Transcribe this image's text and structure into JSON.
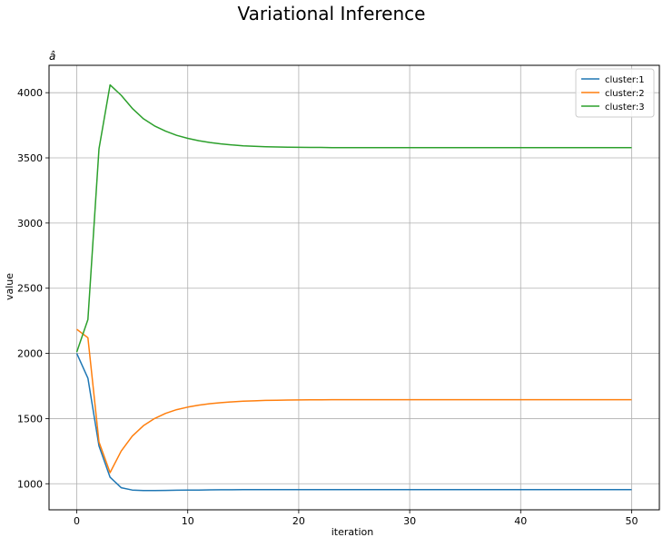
{
  "figure": {
    "suptitle": "Variational Inference"
  },
  "chart_data": {
    "type": "line",
    "title": "â",
    "xlabel": "iteration",
    "ylabel": "value",
    "xlim": [
      -2.5,
      52.5
    ],
    "ylim": [
      800,
      4210
    ],
    "xticks": [
      0,
      10,
      20,
      30,
      40,
      50
    ],
    "yticks": [
      1000,
      1500,
      2000,
      2500,
      3000,
      3500,
      4000
    ],
    "grid": true,
    "legend_position": "top-right",
    "x": [
      0,
      1,
      2,
      3,
      4,
      5,
      6,
      7,
      8,
      9,
      10,
      11,
      12,
      13,
      14,
      15,
      16,
      17,
      18,
      19,
      20,
      21,
      22,
      23,
      24,
      25,
      26,
      27,
      28,
      29,
      30,
      31,
      32,
      33,
      34,
      35,
      36,
      37,
      38,
      39,
      40,
      41,
      42,
      43,
      44,
      45,
      46,
      47,
      48,
      49,
      50
    ],
    "series": [
      {
        "name": "cluster:1",
        "color": "#1f77b4",
        "values": [
          2000,
          1810,
          1290,
          1050,
          970,
          952,
          948,
          948,
          949,
          950,
          951,
          952,
          953,
          954,
          954,
          955,
          955,
          955,
          955,
          955,
          955,
          955,
          955,
          955,
          955,
          955,
          955,
          955,
          955,
          955,
          955,
          955,
          955,
          955,
          955,
          955,
          955,
          955,
          955,
          955,
          955,
          955,
          955,
          955,
          955,
          955,
          955,
          955,
          955,
          955,
          955
        ]
      },
      {
        "name": "cluster:2",
        "color": "#ff7f0e",
        "values": [
          2185,
          2120,
          1320,
          1085,
          1250,
          1365,
          1445,
          1500,
          1540,
          1568,
          1588,
          1603,
          1614,
          1622,
          1628,
          1633,
          1636,
          1639,
          1641,
          1642,
          1643,
          1644,
          1644,
          1645,
          1645,
          1645,
          1645,
          1645,
          1645,
          1645,
          1645,
          1645,
          1645,
          1645,
          1645,
          1645,
          1645,
          1645,
          1645,
          1645,
          1645,
          1645,
          1645,
          1645,
          1645,
          1645,
          1645,
          1645,
          1645,
          1645,
          1645
        ]
      },
      {
        "name": "cluster:3",
        "color": "#2ca02c",
        "values": [
          2010,
          2260,
          3570,
          4060,
          3980,
          3880,
          3800,
          3745,
          3705,
          3673,
          3650,
          3632,
          3618,
          3607,
          3599,
          3593,
          3589,
          3586,
          3584,
          3582,
          3581,
          3580,
          3580,
          3579,
          3579,
          3579,
          3579,
          3579,
          3579,
          3579,
          3579,
          3579,
          3579,
          3579,
          3579,
          3579,
          3579,
          3579,
          3579,
          3579,
          3579,
          3579,
          3579,
          3579,
          3579,
          3579,
          3579,
          3579,
          3579,
          3579,
          3579
        ]
      }
    ]
  }
}
